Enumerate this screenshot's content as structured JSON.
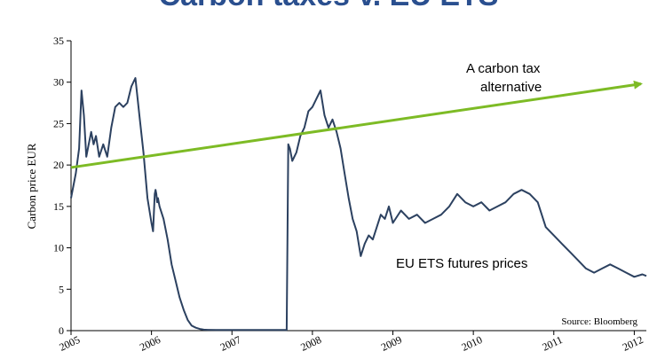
{
  "colors": {
    "series": "#2c4160",
    "arrow": "#7dbb25",
    "title": "#2a4f8f",
    "axis": "#000000"
  },
  "chart_data": {
    "type": "line",
    "title": "Carbon taxes v. EU ETS",
    "xlabel": "",
    "ylabel": "Carbon price EUR",
    "ylim": [
      0,
      35
    ],
    "xlim": [
      2005,
      2012.15
    ],
    "y_ticks": [
      "0",
      "5",
      "10",
      "15",
      "20",
      "25",
      "30",
      "35"
    ],
    "y_tick_values": [
      0,
      5,
      10,
      15,
      20,
      25,
      30,
      35
    ],
    "x_ticks": [
      "2005",
      "2006",
      "2007",
      "2008",
      "2009",
      "2010",
      "2011",
      "2012"
    ],
    "x_tick_values": [
      2005,
      2006,
      2007,
      2008,
      2009,
      2010,
      2011,
      2012
    ],
    "grid": false,
    "series": [
      {
        "name": "EU ETS futures prices",
        "x": [
          2005.0,
          2005.03,
          2005.06,
          2005.1,
          2005.13,
          2005.16,
          2005.19,
          2005.22,
          2005.25,
          2005.28,
          2005.31,
          2005.35,
          2005.4,
          2005.45,
          2005.5,
          2005.55,
          2005.6,
          2005.65,
          2005.7,
          2005.75,
          2005.8,
          2005.85,
          2005.9,
          2005.95,
          2006.0,
          2006.02,
          2006.04,
          2006.05,
          2006.06,
          2006.07,
          2006.08,
          2006.1,
          2006.15,
          2006.2,
          2006.25,
          2006.3,
          2006.35,
          2006.4,
          2006.45,
          2006.5,
          2006.55,
          2006.6,
          2006.65,
          2006.7,
          2006.8,
          2006.9,
          2007.0,
          2007.1,
          2007.2,
          2007.3,
          2007.4,
          2007.5,
          2007.6,
          2007.68,
          2007.7,
          2007.72,
          2007.75,
          2007.8,
          2007.85,
          2007.9,
          2007.95,
          2008.0,
          2008.05,
          2008.1,
          2008.15,
          2008.2,
          2008.25,
          2008.3,
          2008.35,
          2008.4,
          2008.45,
          2008.5,
          2008.55,
          2008.6,
          2008.65,
          2008.7,
          2008.75,
          2008.8,
          2008.85,
          2008.9,
          2008.95,
          2009.0,
          2009.1,
          2009.2,
          2009.3,
          2009.4,
          2009.5,
          2009.6,
          2009.7,
          2009.8,
          2009.9,
          2010.0,
          2010.1,
          2010.2,
          2010.3,
          2010.4,
          2010.5,
          2010.6,
          2010.7,
          2010.8,
          2010.9,
          2011.0,
          2011.1,
          2011.2,
          2011.3,
          2011.4,
          2011.5,
          2011.6,
          2011.7,
          2011.8,
          2011.9,
          2012.0,
          2012.1,
          2012.15
        ],
        "values": [
          16.0,
          17.5,
          19.0,
          22.0,
          29.0,
          26.0,
          21.0,
          22.5,
          24.0,
          22.5,
          23.5,
          21.0,
          22.5,
          21.0,
          24.5,
          27.0,
          27.5,
          27.0,
          27.5,
          29.5,
          30.5,
          26.0,
          21.5,
          16.0,
          13.0,
          12.0,
          16.5,
          17.0,
          16.5,
          15.5,
          16.0,
          15.0,
          13.5,
          11.0,
          8.0,
          6.0,
          4.0,
          2.5,
          1.3,
          0.6,
          0.35,
          0.2,
          0.12,
          0.1,
          0.08,
          0.07,
          0.07,
          0.08,
          0.07,
          0.07,
          0.07,
          0.07,
          0.07,
          0.07,
          22.5,
          22.0,
          20.5,
          21.5,
          23.5,
          24.5,
          26.5,
          27.0,
          28.0,
          29.0,
          26.0,
          24.5,
          25.5,
          24.0,
          22.0,
          19.0,
          16.0,
          13.5,
          12.0,
          9.0,
          10.5,
          11.5,
          11.0,
          12.5,
          14.0,
          13.5,
          15.0,
          13.0,
          14.5,
          13.5,
          14.0,
          13.0,
          13.5,
          14.0,
          15.0,
          16.5,
          15.5,
          15.0,
          15.5,
          14.5,
          15.0,
          15.5,
          16.5,
          17.0,
          16.5,
          15.5,
          12.5,
          11.5,
          10.5,
          9.5,
          8.5,
          7.5,
          7.0,
          7.5,
          8.0,
          7.5,
          7.0,
          6.5,
          6.8,
          6.6
        ]
      },
      {
        "name": "A carbon tax alternative",
        "x": [
          2005.0,
          2012.15
        ],
        "values": [
          19.7,
          29.8
        ]
      }
    ],
    "annotations": [
      {
        "text_lines": [
          "A carbon tax",
          "alternative"
        ],
        "target": "arrow"
      },
      {
        "text_lines": [
          "EU ETS futures prices"
        ],
        "target": "series"
      },
      {
        "text_lines": [
          "Source: Bloomberg"
        ],
        "target": "source"
      }
    ]
  }
}
